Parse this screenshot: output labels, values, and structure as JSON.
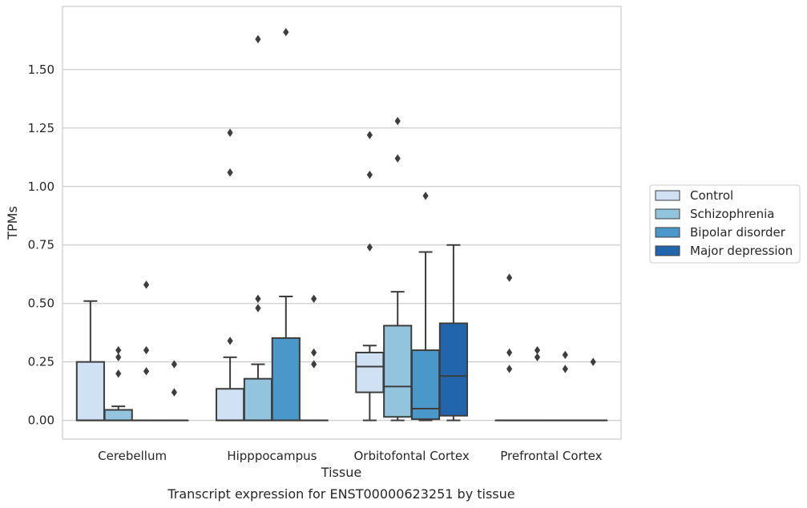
{
  "chart_data": {
    "type": "box",
    "xlabel": "Tissue",
    "ylabel": "TPMs",
    "caption": "Transcript expression for ENST00000623251 by tissue",
    "categories": [
      "Cerebellum",
      "Hipppocampus",
      "Orbitofontal Cortex",
      "Prefrontal Cortex"
    ],
    "ylim": [
      -0.08,
      1.77
    ],
    "yticks": [
      0.0,
      0.25,
      0.5,
      0.75,
      1.0,
      1.25,
      1.5
    ],
    "ytick_labels": [
      "0.00",
      "0.25",
      "0.50",
      "0.75",
      "1.00",
      "1.25",
      "1.50"
    ],
    "grid": "horizontal",
    "legend_position": "right",
    "series": [
      {
        "name": "Control",
        "color": "#cfe1f2",
        "boxes": [
          {
            "category": "Cerebellum",
            "q1": 0.0,
            "median": 0.0,
            "q3": 0.25,
            "whisker_low": 0.0,
            "whisker_high": 0.51,
            "outliers": []
          },
          {
            "category": "Hipppocampus",
            "q1": 0.0,
            "median": 0.0,
            "q3": 0.135,
            "whisker_low": 0.0,
            "whisker_high": 0.27,
            "outliers": [
              0.34,
              1.06,
              1.23
            ]
          },
          {
            "category": "Orbitofontal Cortex",
            "q1": 0.12,
            "median": 0.23,
            "q3": 0.29,
            "whisker_low": 0.0,
            "whisker_high": 0.32,
            "outliers": [
              0.74,
              1.05,
              1.22
            ]
          },
          {
            "category": "Prefrontal Cortex",
            "q1": 0.0,
            "median": 0.0,
            "q3": 0.0,
            "whisker_low": 0.0,
            "whisker_high": 0.0,
            "outliers": [
              0.22,
              0.29,
              0.61
            ]
          }
        ]
      },
      {
        "name": "Schizophrenia",
        "color": "#93c4de",
        "boxes": [
          {
            "category": "Cerebellum",
            "q1": 0.0,
            "median": 0.0,
            "q3": 0.045,
            "whisker_low": 0.0,
            "whisker_high": 0.06,
            "outliers": [
              0.2,
              0.27,
              0.3
            ]
          },
          {
            "category": "Hipppocampus",
            "q1": 0.0,
            "median": 0.0,
            "q3": 0.178,
            "whisker_low": 0.0,
            "whisker_high": 0.24,
            "outliers": [
              0.48,
              0.52,
              1.63
            ]
          },
          {
            "category": "Orbitofontal Cortex",
            "q1": 0.015,
            "median": 0.145,
            "q3": 0.405,
            "whisker_low": 0.0,
            "whisker_high": 0.55,
            "outliers": [
              1.12,
              1.28
            ]
          },
          {
            "category": "Prefrontal Cortex",
            "q1": 0.0,
            "median": 0.0,
            "q3": 0.0,
            "whisker_low": 0.0,
            "whisker_high": 0.0,
            "outliers": [
              0.27,
              0.3
            ]
          }
        ]
      },
      {
        "name": "Bipolar disorder",
        "color": "#4a98c9",
        "boxes": [
          {
            "category": "Cerebellum",
            "q1": 0.0,
            "median": 0.0,
            "q3": 0.0,
            "whisker_low": 0.0,
            "whisker_high": 0.0,
            "outliers": [
              0.21,
              0.3,
              0.58
            ]
          },
          {
            "category": "Hipppocampus",
            "q1": 0.0,
            "median": 0.0,
            "q3": 0.352,
            "whisker_low": 0.0,
            "whisker_high": 0.53,
            "outliers": [
              1.66
            ]
          },
          {
            "category": "Orbitofontal Cortex",
            "q1": 0.005,
            "median": 0.05,
            "q3": 0.3,
            "whisker_low": 0.0,
            "whisker_high": 0.72,
            "outliers": [
              0.96
            ]
          },
          {
            "category": "Prefrontal Cortex",
            "q1": 0.0,
            "median": 0.0,
            "q3": 0.0,
            "whisker_low": 0.0,
            "whisker_high": 0.0,
            "outliers": [
              0.22,
              0.28
            ]
          }
        ]
      },
      {
        "name": "Major depression",
        "color": "#2166ac",
        "boxes": [
          {
            "category": "Cerebellum",
            "q1": 0.0,
            "median": 0.0,
            "q3": 0.0,
            "whisker_low": 0.0,
            "whisker_high": 0.0,
            "outliers": [
              0.12,
              0.24
            ]
          },
          {
            "category": "Hipppocampus",
            "q1": 0.0,
            "median": 0.0,
            "q3": 0.0,
            "whisker_low": 0.0,
            "whisker_high": 0.0,
            "outliers": [
              0.24,
              0.29,
              0.52
            ]
          },
          {
            "category": "Orbitofontal Cortex",
            "q1": 0.02,
            "median": 0.19,
            "q3": 0.415,
            "whisker_low": 0.0,
            "whisker_high": 0.75,
            "outliers": []
          },
          {
            "category": "Prefrontal Cortex",
            "q1": 0.0,
            "median": 0.0,
            "q3": 0.0,
            "whisker_low": 0.0,
            "whisker_high": 0.0,
            "outliers": [
              0.25
            ]
          }
        ]
      }
    ]
  }
}
